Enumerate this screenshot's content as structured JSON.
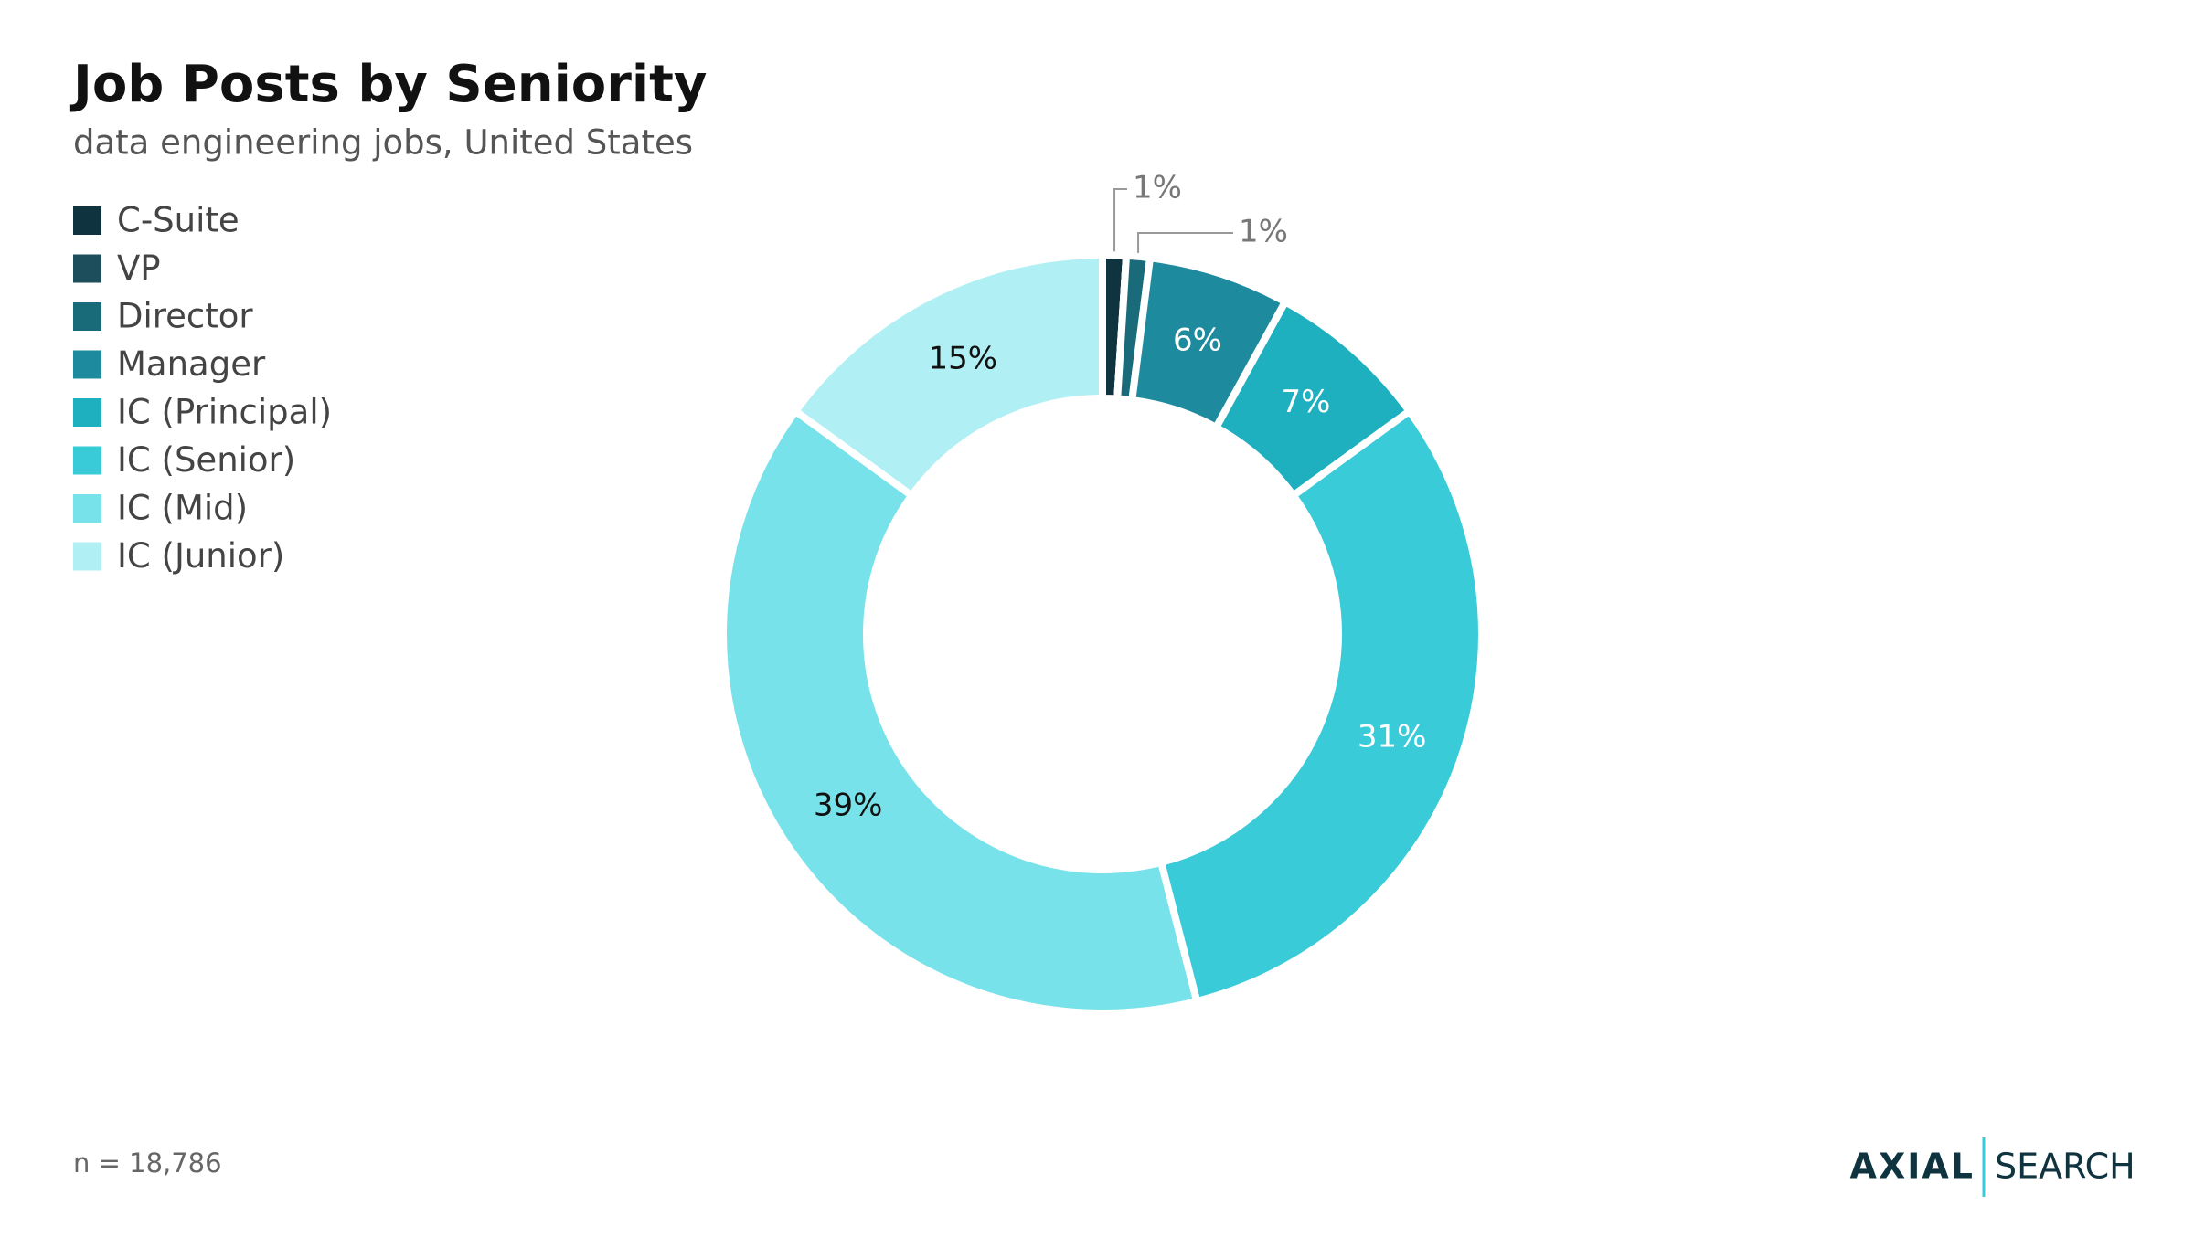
{
  "chart_data": {
    "type": "donut",
    "title": "Job Posts by Seniority",
    "subtitle": "data engineering jobs, United States",
    "categories": [
      "C-Suite",
      "VP",
      "Director",
      "Manager",
      "IC (Principal)",
      "IC (Senior)",
      "IC (Mid)",
      "IC (Junior)"
    ],
    "values": [
      1,
      0,
      1,
      6,
      7,
      31,
      39,
      15
    ],
    "value_labels": [
      "1%",
      null,
      "1%",
      "6%",
      "7%",
      "31%",
      "39%",
      "15%"
    ],
    "colors": [
      "#0f3440",
      "#1d4e5c",
      "#1a6b7a",
      "#1e8a9e",
      "#1fb0c0",
      "#3acbd9",
      "#78e2ea",
      "#b0eff4"
    ],
    "legend": "top-left",
    "note": "n = 18,786"
  },
  "logo": {
    "left": "AXIAL",
    "right": "SEARCH"
  }
}
